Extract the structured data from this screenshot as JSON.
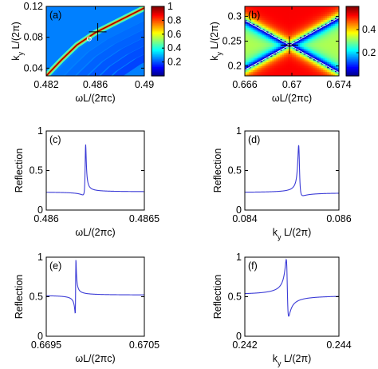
{
  "chart_data": [
    {
      "id": "a",
      "type": "heatmap",
      "panel_label": "(a)",
      "xlabel": "ωL/(2πc)",
      "ylabel": "k_y L/(2π)",
      "xlim": [
        0.482,
        0.49
      ],
      "ylim": [
        0.03,
        0.12
      ],
      "xticks": [
        {
          "v": 0.482,
          "label": "0.482"
        },
        {
          "v": 0.486,
          "label": "0.486"
        },
        {
          "v": 0.49,
          "label": "0.49"
        }
      ],
      "yticks": [
        {
          "v": 0.04,
          "label": "0.04"
        },
        {
          "v": 0.08,
          "label": "0.08"
        },
        {
          "v": 0.12,
          "label": "0.12"
        }
      ],
      "colorbar": {
        "min": 0,
        "max": 1,
        "ticks": [
          {
            "v": 0.2,
            "label": "0.2"
          },
          {
            "v": 0.4,
            "label": "0.4"
          },
          {
            "v": 0.6,
            "label": "0.6"
          },
          {
            "v": 0.8,
            "label": "0.8"
          },
          {
            "v": 1,
            "label": "1"
          }
        ]
      },
      "background_value": 0.25,
      "resonance_curve": [
        [
          0.482,
          0.03
        ],
        [
          0.4832,
          0.05
        ],
        [
          0.4845,
          0.07
        ],
        [
          0.486,
          0.086
        ],
        [
          0.4875,
          0.098
        ],
        [
          0.489,
          0.11
        ],
        [
          0.49,
          0.118
        ]
      ],
      "markers": [
        {
          "kind": "cross",
          "x": 0.4862,
          "y": 0.087
        },
        {
          "kind": "circle",
          "x": 0.4855,
          "y": 0.078
        }
      ]
    },
    {
      "id": "b",
      "type": "heatmap",
      "panel_label": "(b)",
      "xlabel": "ωL/(2πc)",
      "ylabel": "k_y L/(2π)",
      "xlim": [
        0.666,
        0.674
      ],
      "ylim": [
        0.18,
        0.32
      ],
      "xticks": [
        {
          "v": 0.666,
          "label": "0.666"
        },
        {
          "v": 0.67,
          "label": "0.67"
        },
        {
          "v": 0.674,
          "label": "0.674"
        }
      ],
      "yticks": [
        {
          "v": 0.2,
          "label": "0.2"
        },
        {
          "v": 0.25,
          "label": "0.25"
        },
        {
          "v": 0.3,
          "label": "0.3"
        }
      ],
      "colorbar": {
        "min": 0,
        "max": 0.6,
        "ticks": [
          {
            "v": 0.2,
            "label": "0.2"
          },
          {
            "v": 0.4,
            "label": "0.4"
          }
        ]
      },
      "crossing_point": [
        0.6698,
        0.242
      ],
      "markers": [
        {
          "kind": "cross",
          "x": 0.6698,
          "y": 0.242
        }
      ]
    },
    {
      "id": "c",
      "type": "line",
      "panel_label": "(c)",
      "xlabel": "ωL/(2πc)",
      "ylabel": "Reflection",
      "xlim": [
        0.486,
        0.4865
      ],
      "ylim": [
        0,
        1
      ],
      "xticks": [
        {
          "v": 0.486,
          "label": "0.486"
        },
        {
          "v": 0.4865,
          "label": "0.4865"
        }
      ],
      "yticks": [
        {
          "v": 0,
          "label": "0"
        },
        {
          "v": 0.5,
          "label": "0.5"
        },
        {
          "v": 1,
          "label": "1"
        }
      ],
      "fano": {
        "x0": 0.4862,
        "gamma": 3.5e-06,
        "q": 4.0,
        "background": 0.23,
        "scale": 0.6
      },
      "series_color": "#3b3bd6"
    },
    {
      "id": "d",
      "type": "line",
      "panel_label": "(d)",
      "xlabel": "k_y L/(2π)",
      "ylabel": "Reflection",
      "xlim": [
        0.084,
        0.086
      ],
      "ylim": [
        0,
        1
      ],
      "xticks": [
        {
          "v": 0.084,
          "label": "0.084"
        },
        {
          "v": 0.086,
          "label": "0.086"
        }
      ],
      "yticks": [
        {
          "v": 0,
          "label": "0"
        },
        {
          "v": 0.5,
          "label": "0.5"
        },
        {
          "v": 1,
          "label": "1"
        }
      ],
      "fano": {
        "x0": 0.08515,
        "gamma": 2.2e-05,
        "q": -4.0,
        "background": 0.22,
        "scale": 0.6
      },
      "series_color": "#3b3bd6"
    },
    {
      "id": "e",
      "type": "line",
      "panel_label": "(e)",
      "xlabel": "ωL/(2πc)",
      "ylabel": "Reflection",
      "xlim": [
        0.6695,
        0.6705
      ],
      "ylim": [
        0,
        1
      ],
      "xticks": [
        {
          "v": 0.6695,
          "label": "0.6695"
        },
        {
          "v": 0.6705,
          "label": "0.6705"
        }
      ],
      "yticks": [
        {
          "v": 0,
          "label": "0"
        },
        {
          "v": 0.5,
          "label": "0.5"
        },
        {
          "v": 1,
          "label": "1"
        }
      ],
      "fano": {
        "x0": 0.6698,
        "gamma": 3.5e-06,
        "q": 1.4,
        "background": 0.52,
        "scale": 0.45
      },
      "series_color": "#3b3bd6"
    },
    {
      "id": "f",
      "type": "line",
      "panel_label": "(f)",
      "xlabel": "k_y L/(2π)",
      "ylabel": "Reflection",
      "xlim": [
        0.242,
        0.244
      ],
      "ylim": [
        0,
        1
      ],
      "xticks": [
        {
          "v": 0.242,
          "label": "0.242"
        },
        {
          "v": 0.244,
          "label": "0.244"
        }
      ],
      "yticks": [
        {
          "v": 0,
          "label": "0"
        },
        {
          "v": 0.5,
          "label": "0.5"
        },
        {
          "v": 1,
          "label": "1"
        }
      ],
      "fano": {
        "x0": 0.2429,
        "gamma": 2.5e-05,
        "q": -1.3,
        "background": 0.52,
        "scale": 0.45
      },
      "series_color": "#3b3bd6"
    }
  ]
}
